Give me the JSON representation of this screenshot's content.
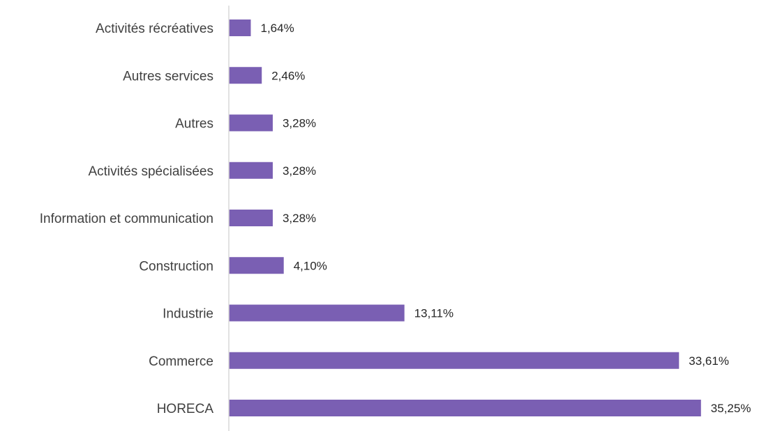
{
  "chart_data": {
    "type": "bar",
    "orientation": "horizontal",
    "categories": [
      "Activités récréatives",
      "Autres services",
      "Autres",
      "Activités spécialisées",
      "Information et communication",
      "Construction",
      "Industrie",
      "Commerce",
      "HORECA"
    ],
    "values": [
      1.64,
      2.46,
      3.28,
      3.28,
      3.28,
      4.1,
      13.11,
      33.61,
      35.25
    ],
    "value_labels": [
      "1,64%",
      "2,46%",
      "3,28%",
      "3,28%",
      "3,28%",
      "4,10%",
      "13,11%",
      "33,61%",
      "35,25%"
    ],
    "unit": "%",
    "xlim": [
      0,
      36
    ],
    "grid": false,
    "legend": "none",
    "colors": {
      "bar": "#7a5fb3",
      "axis": "#d9d9d9",
      "category_text": "#404040",
      "value_text": "#262626"
    }
  }
}
